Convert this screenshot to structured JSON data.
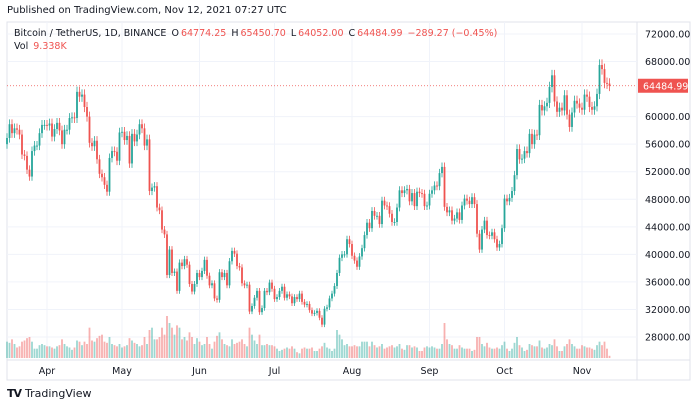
{
  "header": {
    "published": "Published on TradingView.com, Nov 12, 2021 07:27 UTC",
    "symbol": "Bitcoin / TetherUS, 1D, BINANCE",
    "open_label": "O",
    "open": "64774.25",
    "high_label": "H",
    "high": "65450.70",
    "low_label": "L",
    "low": "64052.00",
    "close_label": "C",
    "close": "64484.99",
    "change": "−289.27 (−0.45%)",
    "vol_label": "Vol",
    "vol": "9.338K"
  },
  "footer": {
    "brand": "TradingView",
    "logo_icon": "tradingview-logo-icon"
  },
  "chart_data": {
    "type": "candlestick",
    "title": "Bitcoin / TetherUS, 1D, BINANCE",
    "start_date": "2021-03-16",
    "x_ticks": [
      "Apr",
      "May",
      "Jun",
      "Jul",
      "Aug",
      "Sep",
      "Oct",
      "Nov"
    ],
    "y_ticks": [
      "72000.00",
      "68000.00",
      "60000.00",
      "56000.00",
      "52000.00",
      "48000.00",
      "44000.00",
      "40000.00",
      "36000.00",
      "32000.00",
      "28000.00"
    ],
    "ylim": [
      26000,
      73500
    ],
    "last_price_label": "64484.99",
    "grid": true,
    "colors": {
      "up": "#26a69a",
      "down": "#ef5350",
      "grid": "#f0f3fa",
      "text": "#131722"
    },
    "close": [
      56900,
      58900,
      57600,
      58300,
      58100,
      57400,
      54500,
      54300,
      52300,
      51300,
      55000,
      55800,
      55800,
      57600,
      58800,
      58800,
      58700,
      59000,
      57100,
      58200,
      59100,
      58000,
      56000,
      58100,
      58100,
      59800,
      59900,
      59800,
      63600,
      62900,
      63200,
      61400,
      60000,
      56200,
      55700,
      56500,
      53800,
      51700,
      51200,
      50100,
      49100,
      54000,
      55000,
      54900,
      53600,
      57700,
      57800,
      56600,
      57200,
      53200,
      57500,
      56400,
      57400,
      58900,
      58300,
      55800,
      56700,
      49200,
      49700,
      49900,
      46800,
      46400,
      43600,
      42900,
      37000,
      40700,
      37300,
      37500,
      34700,
      38800,
      38300,
      39300,
      38500,
      35700,
      34600,
      35700,
      37300,
      36700,
      37600,
      39200,
      36900,
      35500,
      35800,
      33600,
      33400,
      37400,
      36700,
      37300,
      35500,
      39000,
      40500,
      40100,
      38300,
      38100,
      35800,
      35500,
      35600,
      31700,
      32500,
      33700,
      34700,
      31600,
      32200,
      34700,
      34500,
      35900,
      35000,
      33500,
      33800,
      34700,
      35300,
      33700,
      34200,
      33900,
      32900,
      33800,
      33500,
      34300,
      33100,
      32700,
      32800,
      31900,
      31400,
      31500,
      31800,
      30800,
      29800,
      32100,
      32300,
      33600,
      34300,
      35400,
      37300,
      39500,
      40000,
      40000,
      42200,
      41500,
      39800,
      39100,
      38200,
      39700,
      40900,
      42800,
      44600,
      43800,
      46300,
      45600,
      45600,
      44400,
      47800,
      47100,
      47000,
      45900,
      44700,
      44700,
      46800,
      49300,
      48900,
      49300,
      49500,
      47700,
      48900,
      47000,
      49100,
      48900,
      48800,
      47000,
      47100,
      48800,
      49300,
      50000,
      49900,
      51800,
      52700,
      46900,
      46100,
      46400,
      44900,
      45200,
      46100,
      45000,
      47100,
      48100,
      47800,
      47300,
      48300,
      47300,
      43000,
      40700,
      43600,
      44900,
      42800,
      42700,
      43200,
      42200,
      41000,
      41500,
      43800,
      48100,
      47700,
      48200,
      49200,
      51500,
      55300,
      53800,
      53900,
      55000,
      54700,
      57500,
      56000,
      57400,
      57300,
      61700,
      60900,
      61500,
      62000,
      64300,
      66000,
      62200,
      60700,
      61300,
      60900,
      63100,
      60300,
      58500,
      60600,
      62300,
      61900,
      61300,
      61000,
      63200,
      62900,
      61400,
      61000,
      61500,
      63300,
      67500,
      66900,
      64900,
      64800,
      64484.99
    ],
    "volume_k": [
      70,
      65,
      80,
      60,
      45,
      50,
      70,
      75,
      85,
      90,
      70,
      40,
      40,
      55,
      60,
      55,
      50,
      50,
      45,
      40,
      50,
      55,
      80,
      60,
      50,
      45,
      35,
      45,
      75,
      70,
      55,
      70,
      60,
      130,
      75,
      70,
      85,
      95,
      100,
      70,
      65,
      90,
      60,
      55,
      50,
      60,
      45,
      50,
      55,
      85,
      75,
      65,
      60,
      50,
      55,
      90,
      60,
      120,
      130,
      80,
      80,
      90,
      130,
      100,
      180,
      150,
      130,
      100,
      140,
      130,
      80,
      90,
      75,
      110,
      90,
      60,
      85,
      70,
      55,
      60,
      90,
      60,
      40,
      70,
      95,
      110,
      80,
      60,
      55,
      50,
      80,
      60,
      65,
      70,
      80,
      60,
      50,
      130,
      100,
      75,
      60,
      100,
      55,
      55,
      60,
      55,
      55,
      50,
      40,
      30,
      35,
      40,
      45,
      40,
      50,
      40,
      25,
      20,
      40,
      45,
      40,
      40,
      45,
      30,
      30,
      40,
      50,
      65,
      45,
      40,
      30,
      40,
      120,
      100,
      80,
      55,
      60,
      50,
      50,
      55,
      50,
      50,
      70,
      70,
      70,
      50,
      70,
      55,
      45,
      50,
      60,
      40,
      45,
      50,
      55,
      45,
      50,
      60,
      40,
      35,
      55,
      55,
      45,
      50,
      45,
      30,
      30,
      45,
      50,
      45,
      50,
      45,
      40,
      40,
      60,
      150,
      80,
      60,
      55,
      40,
      40,
      55,
      45,
      40,
      40,
      40,
      30,
      35,
      90,
      90,
      60,
      50,
      65,
      45,
      40,
      40,
      45,
      40,
      55,
      70,
      40,
      30,
      40,
      65,
      90,
      55,
      45,
      30,
      35,
      60,
      55,
      50,
      50,
      75,
      45,
      40,
      45,
      60,
      55,
      80,
      50,
      30,
      30,
      50,
      60,
      80,
      60,
      50,
      40,
      40,
      55,
      50,
      45,
      45,
      40,
      35,
      55,
      70,
      55,
      70,
      40,
      9.338
    ]
  }
}
